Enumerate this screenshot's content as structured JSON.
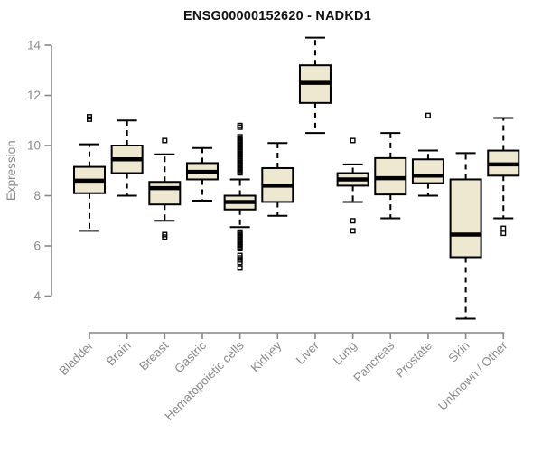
{
  "title": "ENSG00000152620 - NADKD1",
  "chart_data": {
    "type": "boxplot",
    "title": "ENSG00000152620 - NADKD1",
    "xlabel": "",
    "ylabel": "Expression",
    "ylim": [
      2.6,
      14.6
    ],
    "yticks": [
      4,
      6,
      8,
      10,
      12,
      14
    ],
    "grid": false,
    "legend": null,
    "categories": [
      "Bladder",
      "Brain",
      "Breast",
      "Gastric",
      "Hematopoietic cells",
      "Kidney",
      "Liver",
      "Lung",
      "Pancreas",
      "Prostate",
      "Skin",
      "Unknown / Other"
    ],
    "series": [
      {
        "label": "Bladder",
        "whislo": 6.6,
        "q1": 8.1,
        "med": 8.6,
        "q3": 9.15,
        "whishi": 10.05,
        "fliers": [
          11.05,
          11.15
        ]
      },
      {
        "label": "Brain",
        "whislo": 8.0,
        "q1": 8.9,
        "med": 9.45,
        "q3": 10.0,
        "whishi": 11.0,
        "fliers": []
      },
      {
        "label": "Breast",
        "whislo": 7.0,
        "q1": 7.65,
        "med": 8.3,
        "q3": 8.55,
        "whishi": 9.65,
        "fliers": [
          10.2,
          6.45,
          6.35
        ]
      },
      {
        "label": "Gastric",
        "whislo": 7.8,
        "q1": 8.65,
        "med": 8.95,
        "q3": 9.3,
        "whishi": 9.9,
        "fliers": []
      },
      {
        "label": "Hematopoietic cells",
        "whislo": 6.75,
        "q1": 7.45,
        "med": 7.75,
        "q3": 8.0,
        "whishi": 8.65,
        "fliers": [
          10.8,
          10.73,
          10.35,
          10.29,
          10.23,
          10.17,
          10.11,
          10.05,
          9.99,
          9.93,
          9.87,
          9.81,
          9.75,
          9.69,
          9.63,
          9.57,
          9.51,
          9.45,
          9.39,
          9.33,
          9.27,
          9.21,
          9.15,
          9.09,
          9.03,
          8.97,
          8.91,
          6.55,
          6.49,
          6.43,
          6.37,
          6.31,
          6.25,
          6.19,
          6.13,
          6.07,
          6.01,
          5.95,
          5.89,
          5.62,
          5.52,
          5.44,
          5.34,
          5.12
        ]
      },
      {
        "label": "Kidney",
        "whislo": 7.2,
        "q1": 7.75,
        "med": 8.4,
        "q3": 9.1,
        "whishi": 10.1,
        "fliers": []
      },
      {
        "label": "Liver",
        "whislo": 10.5,
        "q1": 11.7,
        "med": 12.5,
        "q3": 13.2,
        "whishi": 14.3,
        "fliers": []
      },
      {
        "label": "Lung",
        "whislo": 7.75,
        "q1": 8.4,
        "med": 8.65,
        "q3": 8.9,
        "whishi": 9.25,
        "fliers": [
          10.2,
          7.0,
          6.6
        ]
      },
      {
        "label": "Pancreas",
        "whislo": 7.1,
        "q1": 8.05,
        "med": 8.7,
        "q3": 9.5,
        "whishi": 10.5,
        "fliers": []
      },
      {
        "label": "Prostate",
        "whislo": 8.0,
        "q1": 8.5,
        "med": 8.8,
        "q3": 9.45,
        "whishi": 9.8,
        "fliers": [
          11.2
        ]
      },
      {
        "label": "Skin",
        "whislo": 3.1,
        "q1": 5.55,
        "med": 6.45,
        "q3": 8.65,
        "whishi": 9.7,
        "fliers": []
      },
      {
        "label": "Unknown / Other",
        "whislo": 7.1,
        "q1": 8.8,
        "med": 9.25,
        "q3": 9.8,
        "whishi": 11.1,
        "fliers": [
          6.7,
          6.5
        ]
      }
    ]
  },
  "style": {
    "box_fill": "#EEE8D0",
    "box_border": "#000000",
    "median_color": "#000000",
    "whisker_color": "#000000",
    "outlier_color": "#000000",
    "axis_color": "#878787",
    "tick_label_color": "#8a8a8a",
    "title_color": "#111111",
    "background": "#FFFFFF"
  }
}
